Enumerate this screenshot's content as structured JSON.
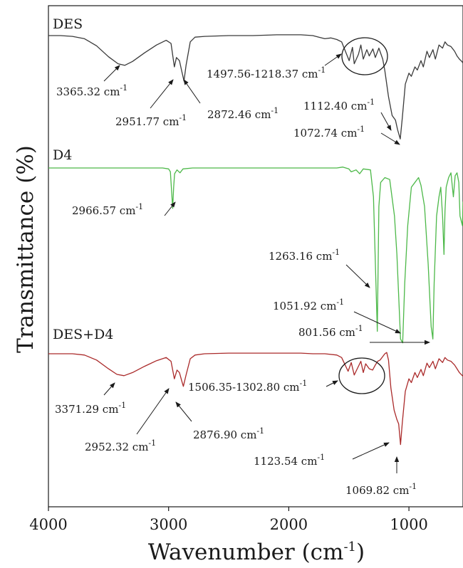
{
  "chart_data": {
    "type": "line",
    "title": "",
    "xlabel": "Wavenumber (cm",
    "xlabel_sup": "-1",
    "xlabel_end": ")",
    "ylabel": "Transmittance (%)",
    "xlim": [
      4000,
      550
    ],
    "x_reversed": true,
    "xticks": [
      "4000",
      "3000",
      "2000",
      "1000"
    ],
    "grid": false,
    "unit_sup": "-1",
    "series": [
      {
        "name": "DES",
        "color": "#3a3a3a",
        "points": [
          [
            4000,
            0.0
          ],
          [
            3900,
            0.0
          ],
          [
            3800,
            0.01
          ],
          [
            3700,
            0.04
          ],
          [
            3600,
            0.13
          ],
          [
            3500,
            0.27
          ],
          [
            3420,
            0.36
          ],
          [
            3365,
            0.38
          ],
          [
            3300,
            0.33
          ],
          [
            3200,
            0.22
          ],
          [
            3100,
            0.12
          ],
          [
            3020,
            0.06
          ],
          [
            2980,
            0.1
          ],
          [
            2952,
            0.4
          ],
          [
            2935,
            0.28
          ],
          [
            2910,
            0.32
          ],
          [
            2890,
            0.46
          ],
          [
            2872,
            0.58
          ],
          [
            2855,
            0.38
          ],
          [
            2820,
            0.08
          ],
          [
            2780,
            0.02
          ],
          [
            2700,
            0.01
          ],
          [
            2500,
            0.0
          ],
          [
            2300,
            0.0
          ],
          [
            2100,
            -0.01
          ],
          [
            1900,
            -0.01
          ],
          [
            1800,
            0.0
          ],
          [
            1750,
            0.02
          ],
          [
            1700,
            0.04
          ],
          [
            1650,
            0.03
          ],
          [
            1600,
            0.05
          ],
          [
            1560,
            0.08
          ],
          [
            1497,
            0.32
          ],
          [
            1470,
            0.15
          ],
          [
            1455,
            0.36
          ],
          [
            1420,
            0.24
          ],
          [
            1400,
            0.12
          ],
          [
            1380,
            0.3
          ],
          [
            1350,
            0.18
          ],
          [
            1330,
            0.26
          ],
          [
            1300,
            0.17
          ],
          [
            1280,
            0.28
          ],
          [
            1250,
            0.16
          ],
          [
            1218,
            0.3
          ],
          [
            1200,
            0.45
          ],
          [
            1170,
            0.78
          ],
          [
            1140,
            1.02
          ],
          [
            1112,
            1.08
          ],
          [
            1095,
            1.2
          ],
          [
            1072,
            1.32
          ],
          [
            1055,
            1.05
          ],
          [
            1030,
            0.62
          ],
          [
            1000,
            0.48
          ],
          [
            980,
            0.52
          ],
          [
            950,
            0.4
          ],
          [
            930,
            0.44
          ],
          [
            900,
            0.32
          ],
          [
            880,
            0.4
          ],
          [
            850,
            0.2
          ],
          [
            830,
            0.28
          ],
          [
            800,
            0.18
          ],
          [
            780,
            0.3
          ],
          [
            750,
            0.12
          ],
          [
            720,
            0.16
          ],
          [
            700,
            0.08
          ],
          [
            680,
            0.12
          ],
          [
            650,
            0.14
          ],
          [
            620,
            0.2
          ],
          [
            600,
            0.26
          ],
          [
            580,
            0.3
          ],
          [
            560,
            0.33
          ],
          [
            550,
            0.35
          ]
        ]
      },
      {
        "name": "D4",
        "color": "#4cb848",
        "points": [
          [
            4000,
            0.0
          ],
          [
            3800,
            0.0
          ],
          [
            3600,
            0.0
          ],
          [
            3400,
            0.0
          ],
          [
            3200,
            0.0
          ],
          [
            3050,
            0.0
          ],
          [
            3000,
            0.01
          ],
          [
            2985,
            0.04
          ],
          [
            2966,
            0.42
          ],
          [
            2958,
            0.2
          ],
          [
            2950,
            0.06
          ],
          [
            2930,
            0.02
          ],
          [
            2905,
            0.05
          ],
          [
            2880,
            0.01
          ],
          [
            2800,
            0.0
          ],
          [
            2500,
            0.0
          ],
          [
            2200,
            0.0
          ],
          [
            2000,
            0.0
          ],
          [
            1800,
            0.0
          ],
          [
            1700,
            0.0
          ],
          [
            1600,
            0.0
          ],
          [
            1550,
            -0.01
          ],
          [
            1500,
            0.01
          ],
          [
            1480,
            0.04
          ],
          [
            1440,
            0.02
          ],
          [
            1410,
            0.06
          ],
          [
            1380,
            0.01
          ],
          [
            1320,
            0.02
          ],
          [
            1295,
            0.3
          ],
          [
            1263,
            1.7
          ],
          [
            1250,
            0.4
          ],
          [
            1235,
            0.15
          ],
          [
            1200,
            0.1
          ],
          [
            1160,
            0.12
          ],
          [
            1120,
            0.5
          ],
          [
            1100,
            0.9
          ],
          [
            1070,
            1.78
          ],
          [
            1052,
            1.82
          ],
          [
            1035,
            1.2
          ],
          [
            1010,
            0.6
          ],
          [
            980,
            0.2
          ],
          [
            950,
            0.15
          ],
          [
            920,
            0.1
          ],
          [
            900,
            0.18
          ],
          [
            870,
            0.4
          ],
          [
            840,
            1.0
          ],
          [
            815,
            1.65
          ],
          [
            801,
            1.78
          ],
          [
            790,
            1.2
          ],
          [
            770,
            0.5
          ],
          [
            750,
            0.3
          ],
          [
            735,
            0.2
          ],
          [
            720,
            0.5
          ],
          [
            708,
            0.9
          ],
          [
            700,
            0.45
          ],
          [
            690,
            0.2
          ],
          [
            670,
            0.1
          ],
          [
            650,
            0.05
          ],
          [
            630,
            0.3
          ],
          [
            615,
            0.08
          ],
          [
            600,
            0.05
          ],
          [
            585,
            0.15
          ],
          [
            575,
            0.5
          ],
          [
            565,
            0.55
          ],
          [
            555,
            0.6
          ],
          [
            550,
            0.35
          ]
        ]
      },
      {
        "name": "DES+D4",
        "color": "#aa2a2a",
        "points": [
          [
            4000,
            0.0
          ],
          [
            3900,
            0.0
          ],
          [
            3800,
            0.0
          ],
          [
            3700,
            0.02
          ],
          [
            3600,
            0.1
          ],
          [
            3500,
            0.24
          ],
          [
            3430,
            0.33
          ],
          [
            3371,
            0.35
          ],
          [
            3300,
            0.3
          ],
          [
            3200,
            0.2
          ],
          [
            3100,
            0.11
          ],
          [
            3020,
            0.06
          ],
          [
            2980,
            0.12
          ],
          [
            2952,
            0.4
          ],
          [
            2930,
            0.26
          ],
          [
            2910,
            0.3
          ],
          [
            2890,
            0.44
          ],
          [
            2877,
            0.52
          ],
          [
            2855,
            0.34
          ],
          [
            2820,
            0.08
          ],
          [
            2780,
            0.02
          ],
          [
            2700,
            0.0
          ],
          [
            2500,
            -0.01
          ],
          [
            2300,
            -0.01
          ],
          [
            2100,
            -0.01
          ],
          [
            1900,
            -0.01
          ],
          [
            1800,
            0.0
          ],
          [
            1700,
            0.0
          ],
          [
            1600,
            0.02
          ],
          [
            1560,
            0.06
          ],
          [
            1506,
            0.28
          ],
          [
            1480,
            0.14
          ],
          [
            1455,
            0.34
          ],
          [
            1420,
            0.2
          ],
          [
            1400,
            0.12
          ],
          [
            1380,
            0.3
          ],
          [
            1360,
            0.16
          ],
          [
            1330,
            0.24
          ],
          [
            1302,
            0.26
          ],
          [
            1280,
            0.18
          ],
          [
            1260,
            0.12
          ],
          [
            1240,
            0.1
          ],
          [
            1220,
            0.05
          ],
          [
            1200,
            0.0
          ],
          [
            1185,
            -0.02
          ],
          [
            1170,
            0.1
          ],
          [
            1150,
            0.55
          ],
          [
            1123,
            0.9
          ],
          [
            1100,
            1.05
          ],
          [
            1085,
            1.12
          ],
          [
            1070,
            1.45
          ],
          [
            1055,
            1.1
          ],
          [
            1030,
            0.6
          ],
          [
            1000,
            0.4
          ],
          [
            980,
            0.46
          ],
          [
            950,
            0.3
          ],
          [
            930,
            0.38
          ],
          [
            900,
            0.25
          ],
          [
            880,
            0.35
          ],
          [
            850,
            0.15
          ],
          [
            830,
            0.22
          ],
          [
            800,
            0.12
          ],
          [
            780,
            0.24
          ],
          [
            750,
            0.08
          ],
          [
            720,
            0.14
          ],
          [
            700,
            0.06
          ],
          [
            680,
            0.1
          ],
          [
            650,
            0.12
          ],
          [
            620,
            0.18
          ],
          [
            600,
            0.24
          ],
          [
            580,
            0.3
          ],
          [
            560,
            0.34
          ],
          [
            550,
            0.36
          ]
        ]
      }
    ],
    "annotations": [
      {
        "series": "DES",
        "value": "3365.32 cm"
      },
      {
        "series": "DES",
        "value": "2951.77 cm"
      },
      {
        "series": "DES",
        "value": "2872.46 cm"
      },
      {
        "series": "DES",
        "value": "1497.56-1218.37 cm"
      },
      {
        "series": "DES",
        "value": "1112.40 cm"
      },
      {
        "series": "DES",
        "value": "1072.74 cm"
      },
      {
        "series": "D4",
        "value": "2966.57 cm"
      },
      {
        "series": "D4",
        "value": "1263.16 cm"
      },
      {
        "series": "D4",
        "value": "1051.92 cm"
      },
      {
        "series": "D4",
        "value": "801.56 cm"
      },
      {
        "series": "DES+D4",
        "value": "3371.29 cm"
      },
      {
        "series": "DES+D4",
        "value": "2952.32 cm"
      },
      {
        "series": "DES+D4",
        "value": "2876.90 cm"
      },
      {
        "series": "DES+D4",
        "value": "1506.35-1302.80 cm"
      },
      {
        "series": "DES+D4",
        "value": "1123.54 cm"
      },
      {
        "series": "DES+D4",
        "value": "1069.82 cm"
      }
    ]
  }
}
